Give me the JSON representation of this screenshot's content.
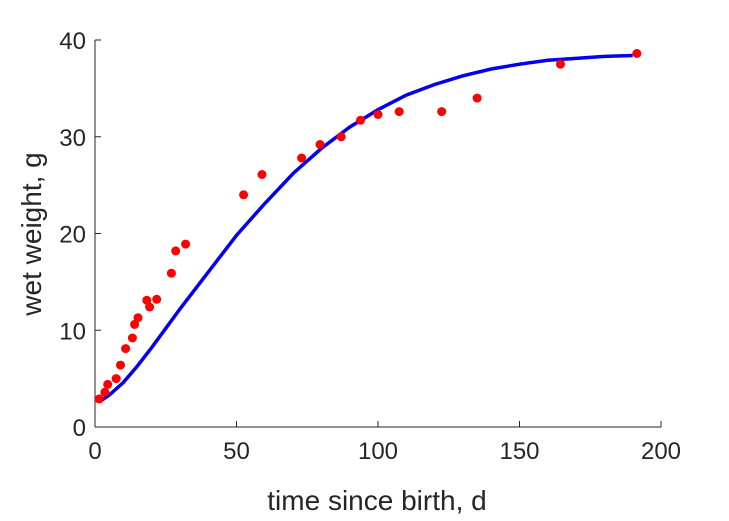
{
  "chart_data": {
    "type": "scatter",
    "title": "",
    "xlabel": "time since birth, d",
    "ylabel": "wet weight, g",
    "xlim": [
      0,
      200
    ],
    "ylim": [
      0,
      40
    ],
    "xticks": [
      0,
      50,
      100,
      150,
      200
    ],
    "yticks": [
      0,
      10,
      20,
      30,
      40
    ],
    "grid": false,
    "legend": "none",
    "colors": {
      "points": "#ff0000",
      "fit": "#0000ee",
      "axes": "#262626"
    },
    "series": [
      {
        "kind": "points",
        "x": [
          1.5,
          3.5,
          4.5,
          7.5,
          9,
          10.8,
          13.2,
          14,
          15.2,
          18.3,
          19.3,
          21.8,
          27,
          28.5,
          32,
          52.5,
          59,
          73,
          79.5,
          87,
          93.8,
          100,
          107.5,
          122.5,
          135,
          164.5,
          191.5
        ],
        "y": [
          2.9,
          3.6,
          4.4,
          5.0,
          6.4,
          8.1,
          9.2,
          10.6,
          11.3,
          13.1,
          12.4,
          13.2,
          15.9,
          18.2,
          18.9,
          24.0,
          26.1,
          27.8,
          29.2,
          30.0,
          31.7,
          32.3,
          32.6,
          32.6,
          34.0,
          37.5,
          38.6
        ]
      },
      {
        "kind": "line",
        "x": [
          2,
          5,
          10,
          15,
          20,
          25,
          30,
          35,
          40,
          50,
          60,
          70,
          80,
          90,
          100,
          110,
          120,
          130,
          140,
          150,
          160,
          170,
          180,
          190
        ],
        "y": [
          2.7,
          3.3,
          4.6,
          6.3,
          8.2,
          10.2,
          12.2,
          14.1,
          16.0,
          19.8,
          23.1,
          26.2,
          28.8,
          31.0,
          32.8,
          34.3,
          35.4,
          36.3,
          37.0,
          37.5,
          37.9,
          38.1,
          38.3,
          38.4
        ]
      }
    ]
  }
}
